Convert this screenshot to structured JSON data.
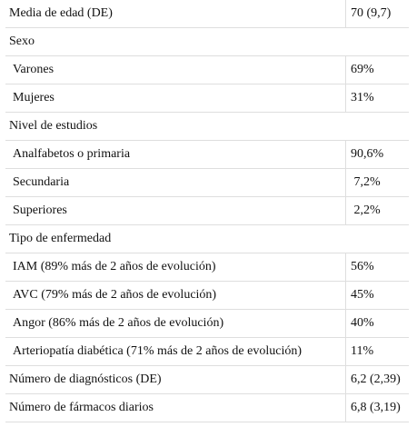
{
  "rows": [
    {
      "label": "Media de edad (DE)",
      "value": "70 (9,7)",
      "kind": "row"
    },
    {
      "label": "Sexo",
      "value": "",
      "kind": "section"
    },
    {
      "label": "Varones",
      "value": "69%",
      "kind": "sub"
    },
    {
      "label": "Mujeres",
      "value": "31%",
      "kind": "sub"
    },
    {
      "label": "Nivel de estudios",
      "value": "",
      "kind": "section"
    },
    {
      "label": "Analfabetos o primaria",
      "value": "90,6%",
      "kind": "sub"
    },
    {
      "label": "Secundaria",
      "value": " 7,2%",
      "kind": "sub"
    },
    {
      "label": "Superiores",
      "value": " 2,2%",
      "kind": "sub"
    },
    {
      "label": "Tipo de enfermedad",
      "value": "",
      "kind": "section"
    },
    {
      "label": "IAM (89% más de 2 años de evolución)",
      "value": "56%",
      "kind": "sub"
    },
    {
      "label": "AVC (79% más de 2 años de evolución)",
      "value": "45%",
      "kind": "sub"
    },
    {
      "label": "Angor (86% más de 2 años de evolución)",
      "value": "40%",
      "kind": "sub"
    },
    {
      "label": "Arteriopatía diabética (71% más de 2 años de evolución)",
      "value": "11%",
      "kind": "sub"
    },
    {
      "label": "Número de diagnósticos (DE)",
      "value": "6,2 (2,39)",
      "kind": "row"
    },
    {
      "label": "Número de fármacos diarios",
      "value": "6,8 (3,19)",
      "kind": "row"
    }
  ]
}
